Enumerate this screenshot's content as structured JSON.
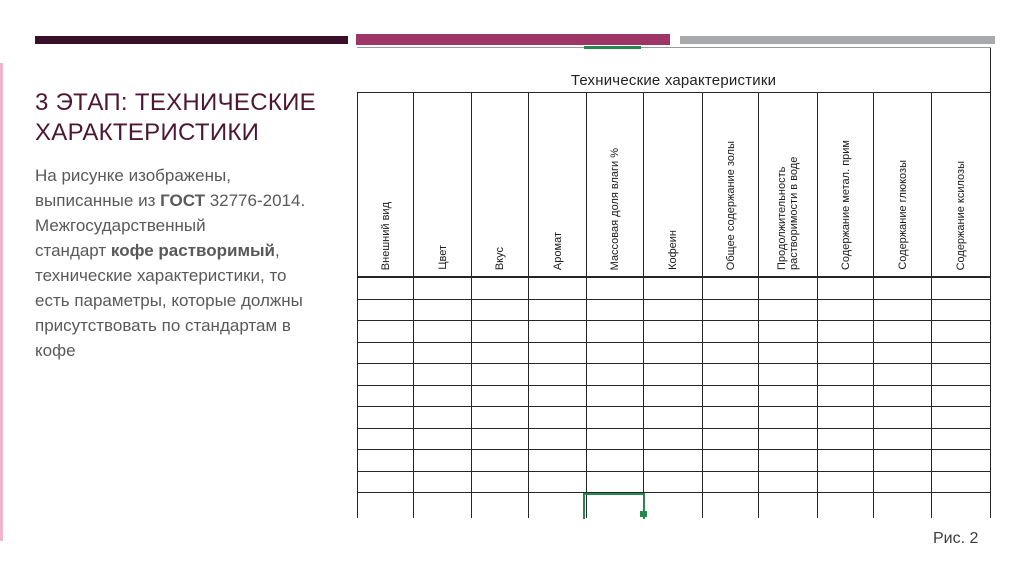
{
  "slide": {
    "title": "3 ЭТАП: ТЕХНИЧЕСКИЕ\nХАРАКТЕРИСТИКИ",
    "paragraph_segments": [
      {
        "text": "На рисунке изображены,\nвыписанные из ",
        "bold": false
      },
      {
        "text": "ГОСТ",
        "bold": true
      },
      {
        "text": " 32776-2014.\nМежгосударственный\nстандарт ",
        "bold": false
      },
      {
        "text": "кофе растворимый",
        "bold": true
      },
      {
        "text": ",\nтехнические характеристики, то\nесть параметры, которые должны\nприсутствовать по стандартам в\nкофе",
        "bold": false
      }
    ],
    "figure_caption": "Рис. 2"
  },
  "table": {
    "title": "Технические характеристики",
    "columns": [
      "Внешний вид",
      "Цвет",
      "Вкус",
      "Аромат",
      "Массовая доля влаги %",
      "Кофеин",
      "Общее содержание золы",
      "Продолжительность растворимости в воде",
      "Содержание метал. прим",
      "Содержание глюкозы",
      "Содержание ксилозы"
    ],
    "empty_rows": 11,
    "selection": {
      "column": "Массовая доля влаги %",
      "row": 11
    }
  },
  "theme": {
    "accent_dark": "#3a0f29",
    "accent_magenta": "#9e3567",
    "accent_gray": "#a7a9ac",
    "accent_pink": "#f0b6cd",
    "title_color": "#4d1733",
    "body_color": "#595959",
    "selection_green": "#26874f",
    "line": "#262626"
  }
}
